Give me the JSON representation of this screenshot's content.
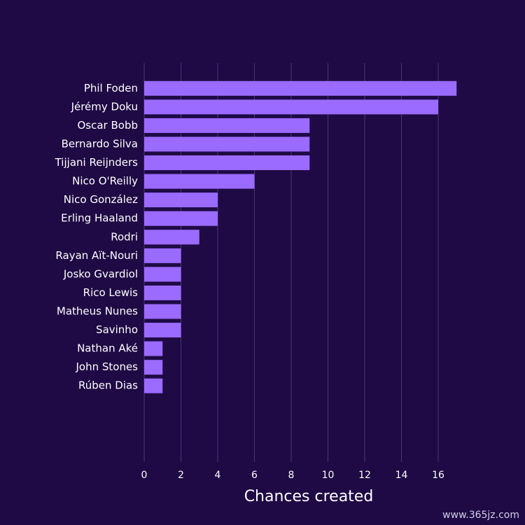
{
  "chart_data": {
    "type": "bar",
    "orientation": "horizontal",
    "categories": [
      "Phil Foden",
      "Jérémy Doku",
      "Oscar Bobb",
      "Bernardo Silva",
      "Tijjani Reijnders",
      "Nico O'Reilly",
      "Nico González",
      "Erling Haaland",
      "Rodri",
      "Rayan Aït-Nouri",
      "Josko Gvardiol",
      "Rico Lewis",
      "Matheus Nunes",
      "Savinho",
      "Nathan Aké",
      "John Stones",
      "Rúben Dias"
    ],
    "values": [
      17,
      16,
      9,
      9,
      9,
      6,
      4,
      4,
      3,
      2,
      2,
      2,
      2,
      2,
      1,
      1,
      1
    ],
    "color": "#9b6bff",
    "xlabel": "Chances created",
    "xlim": [
      0,
      17
    ],
    "xticks": [
      0,
      2,
      4,
      6,
      8,
      10,
      12,
      14,
      16
    ],
    "grid": true
  },
  "watermark": "www.365jz.com"
}
